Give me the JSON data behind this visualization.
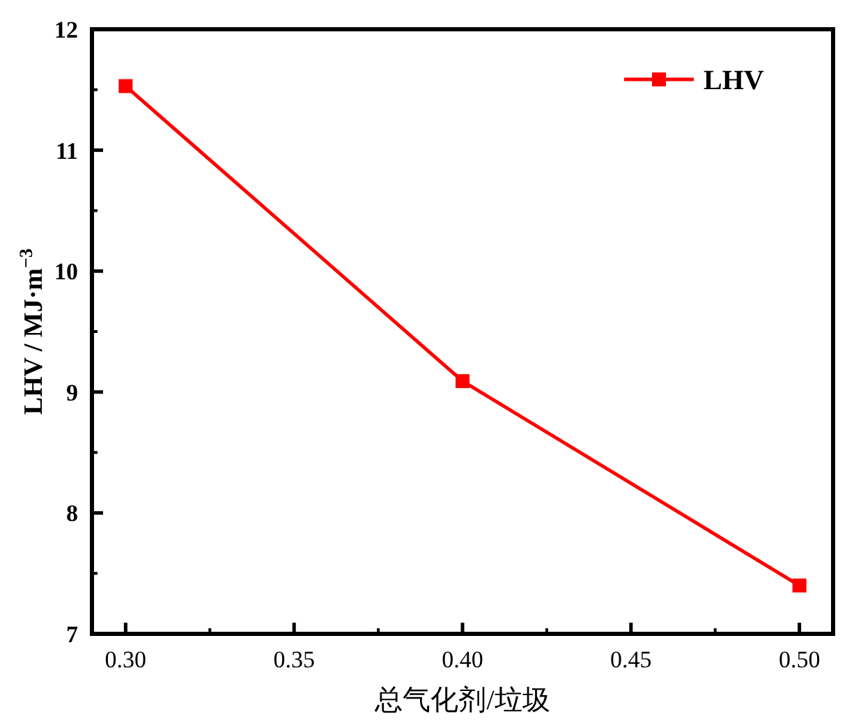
{
  "chart_data": {
    "type": "line",
    "xlabel": "总气化剂/垃圾",
    "ylabel": "LHV / MJ·m$^{−3}$",
    "x": [
      0.3,
      0.4,
      0.5
    ],
    "series": [
      {
        "name": "LHV",
        "color": "#ff0000",
        "values": [
          11.53,
          9.09,
          7.4
        ]
      }
    ],
    "xlim": [
      0.29,
      0.51
    ],
    "xticks": [
      {
        "value": 0.3,
        "label": "0.30"
      },
      {
        "value": 0.35,
        "label": "0.35"
      },
      {
        "value": 0.4,
        "label": "0.40"
      },
      {
        "value": 0.45,
        "label": "0.45"
      },
      {
        "value": 0.5,
        "label": "0.50"
      }
    ],
    "ylim": [
      7,
      12
    ],
    "yticks": [
      7,
      8,
      9,
      10,
      11,
      12
    ],
    "marker": "square",
    "line_style": "solid",
    "legend": "top right",
    "grid": false
  }
}
